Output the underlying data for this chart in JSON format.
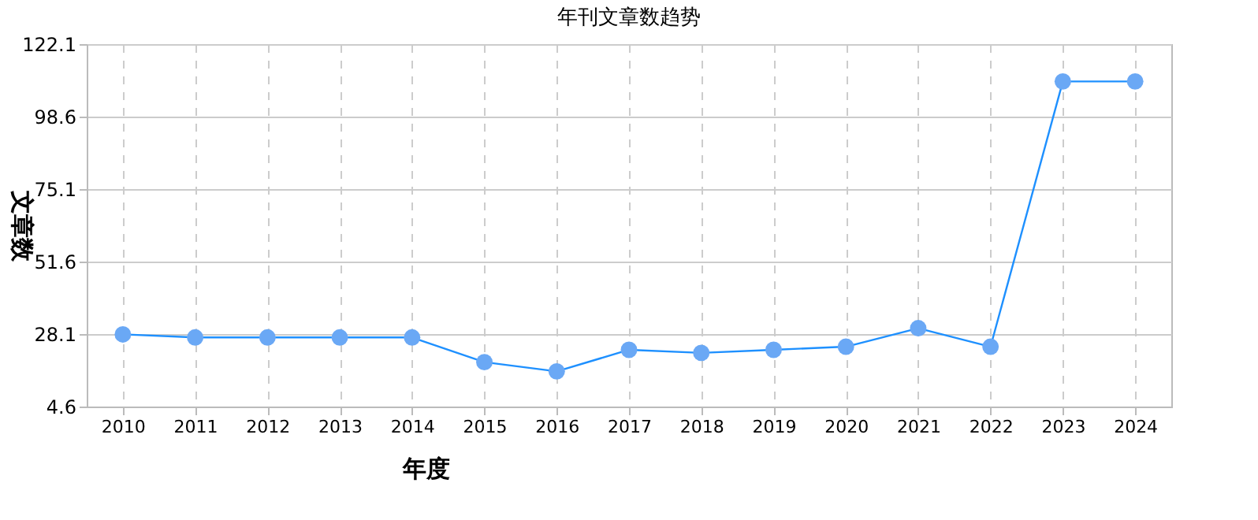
{
  "chart_data": {
    "type": "line",
    "title": "年刊文章数趋势",
    "xlabel": "年度",
    "ylabel": "文章数",
    "categories": [
      "2010",
      "2011",
      "2012",
      "2013",
      "2014",
      "2015",
      "2016",
      "2017",
      "2018",
      "2019",
      "2020",
      "2021",
      "2022",
      "2023",
      "2024"
    ],
    "series": [
      {
        "color": "#1e90ff",
        "values": [
          28,
          27,
          27,
          27,
          27,
          19,
          16,
          23,
          22,
          23,
          24,
          30,
          24,
          110,
          110
        ]
      }
    ],
    "ylim": [
      4.6,
      122.1
    ],
    "yticks": [
      4.6,
      28.1,
      51.6,
      75.1,
      98.6,
      122.1
    ],
    "grid": true,
    "marker": "circle",
    "line_style": "solid"
  }
}
